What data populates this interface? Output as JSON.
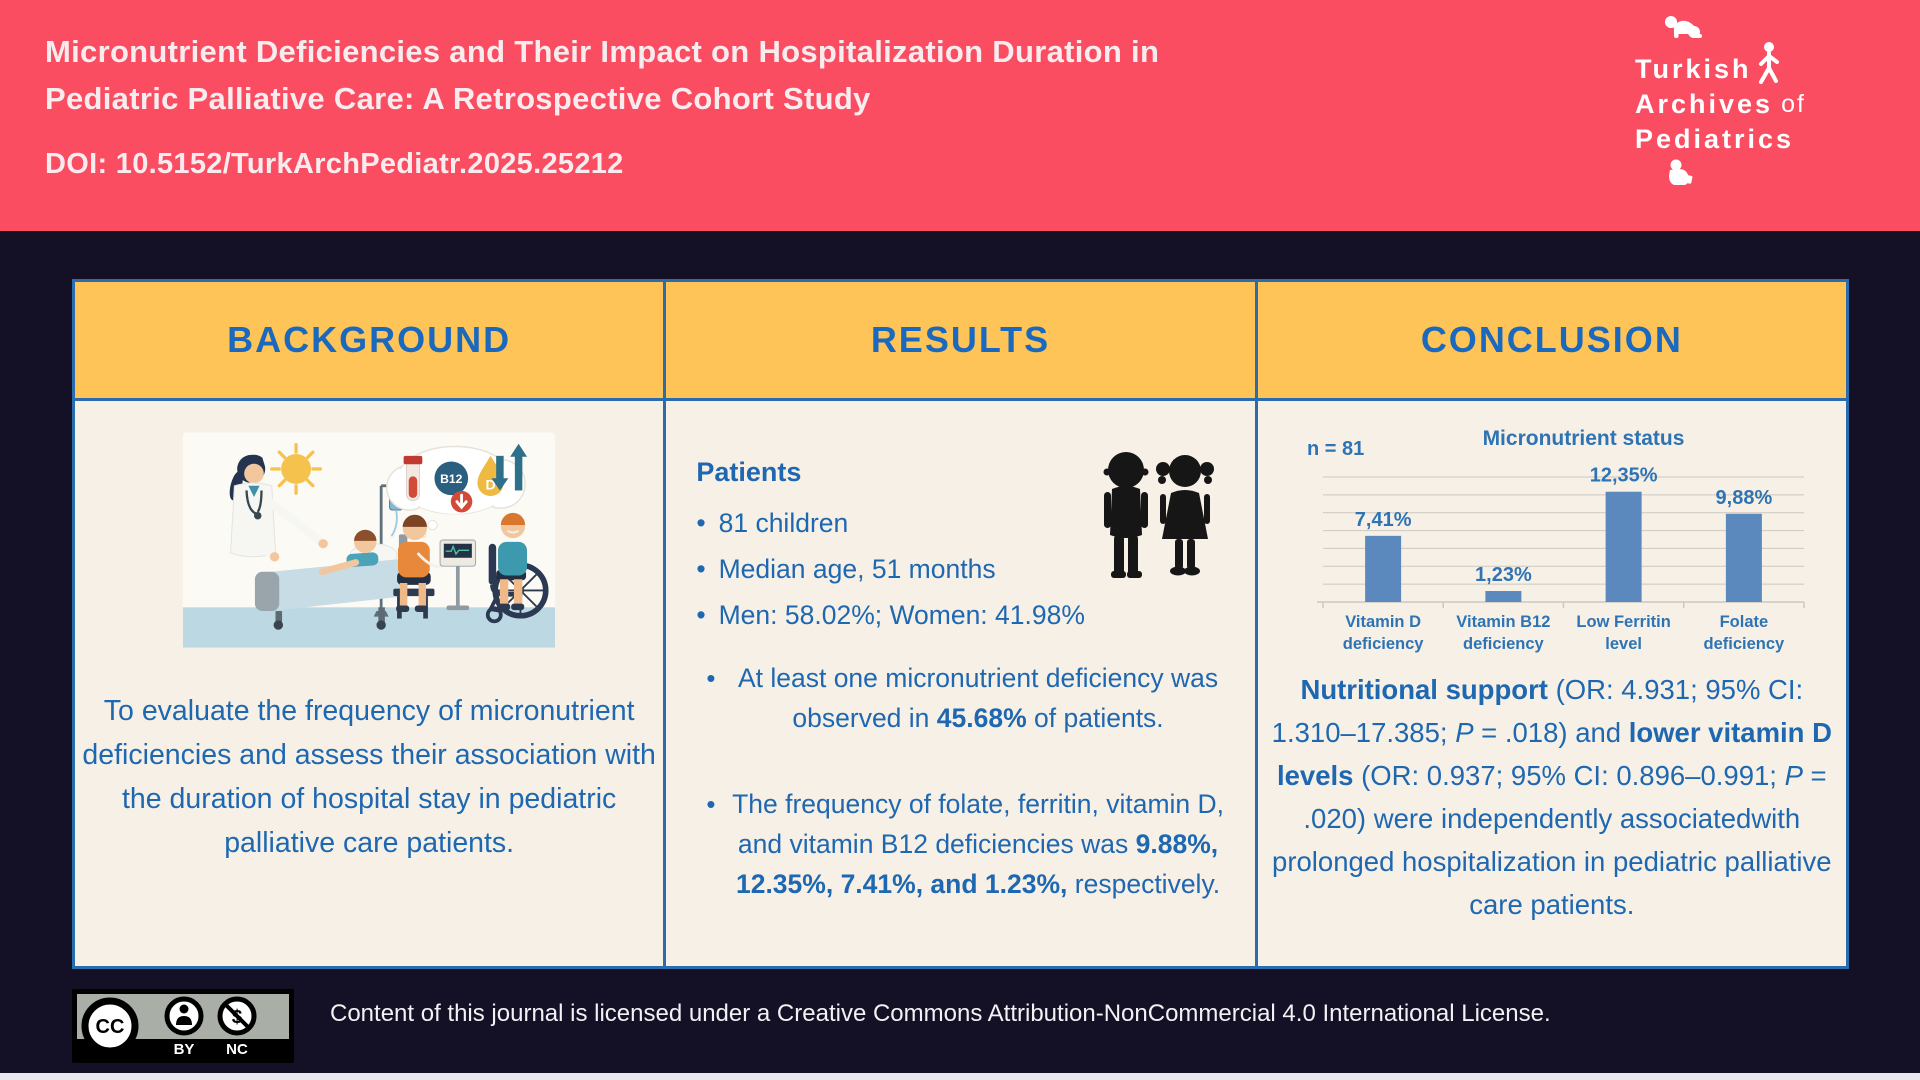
{
  "header": {
    "title_line1": "Micronutrient Deficiencies and Their Impact on Hospitalization Duration in",
    "title_line2": "Pediatric Palliative Care: A Retrospective Cohort Study",
    "doi": "DOI: 10.5152/TurkArchPediatr.2025.25212",
    "logo": {
      "word1": "Turkish",
      "word2": "Archives",
      "word2b": "of",
      "word3": "Pediatrics"
    }
  },
  "table_headers": {
    "background": "BACKGROUND",
    "results": "RESULTS",
    "conclusion": "CONCLUSION"
  },
  "background": {
    "objective": "To evaluate the frequency of micronutrient deficiencies and assess their association with the duration of hospital stay in pediatric palliative care patients.",
    "illustration_labels": {
      "b12": "B12",
      "d": "D"
    }
  },
  "results": {
    "patients_label": "Patients",
    "bullets": [
      "81 children",
      "Median age, 51 months",
      "Men: 58.02%; Women: 41.98%"
    ],
    "finding1": [
      {
        "t": "At least one micronutrient deficiency was observed in "
      },
      {
        "t": "45.68%",
        "b": true
      },
      {
        "t": " of patients."
      }
    ],
    "finding2": [
      {
        "t": "The frequency of folate, ferritin, vitamin D, and vitamin B12 deficiencies was "
      },
      {
        "t": "9.88%, 12.35%, 7.41%, and 1.23%,",
        "b": true
      },
      {
        "t": " respectively."
      }
    ]
  },
  "conclusion": {
    "text": [
      {
        "t": "Nutritional support",
        "b": true
      },
      {
        "t": " (OR: 4.931; 95% CI: 1.310–17.385; "
      },
      {
        "t": "P",
        "i": true
      },
      {
        "t": " = .018) and "
      },
      {
        "t": "lower vitamin D levels",
        "b": true
      },
      {
        "t": " (OR: 0.937; 95% CI: 0.896–0.991; "
      },
      {
        "t": "P",
        "i": true
      },
      {
        "t": " = .020) were independently associatedwith prolonged hospitalization in pediatric palliative care patients."
      }
    ]
  },
  "chart_data": {
    "type": "bar",
    "title": "Micronutrient status",
    "n_label": "n = 81",
    "categories": [
      [
        "Vitamin D",
        "deficiency"
      ],
      [
        "Vitamin B12",
        "deficiency"
      ],
      [
        "Low Ferritin",
        "level"
      ],
      [
        "Folate",
        "deficiency"
      ]
    ],
    "values": [
      7.41,
      1.23,
      12.35,
      9.88
    ],
    "value_labels": [
      "7,41%",
      "1,23%",
      "12,35%",
      "9,88%"
    ],
    "ylim": [
      0,
      14
    ],
    "grid_step": 2,
    "grid": true,
    "legend": false,
    "bar_color": "#5B88BD",
    "text_color": "#2E74B5",
    "grid_color": "#CCC8C0"
  },
  "footer": {
    "license_text": "Content of this journal is licensed under a Creative Commons Attribution-NonCommercial 4.0 International License.",
    "cc": "CC",
    "by": "BY",
    "nc": "NC",
    "nc_symbol": "$"
  },
  "colors": {
    "header_pink": "#FB4D62",
    "page_navy": "#141126",
    "cell_yellow": "#FFC457",
    "cell_cream": "#F7F0E6",
    "border_blue": "#2A6CAC",
    "text_blue": "#1E67B1",
    "heading_blue": "#1A69BE"
  }
}
